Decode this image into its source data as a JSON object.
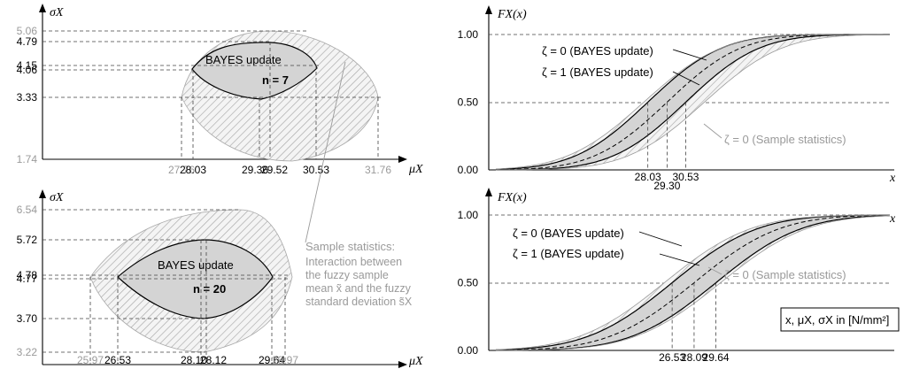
{
  "chart_data": [
    {
      "type": "diagram",
      "panel": "top-left",
      "y_axis_label": "σX",
      "x_axis_label": "μX",
      "y_ticks": [
        {
          "value": "5.06",
          "color": "gray"
        },
        {
          "value": "4.79",
          "color": "black"
        },
        {
          "value": "4.15",
          "color": "black"
        },
        {
          "value": "4.06",
          "color": "black"
        },
        {
          "value": "3.33",
          "color": "black"
        },
        {
          "value": "1.74",
          "color": "gray"
        }
      ],
      "x_ticks": [
        {
          "value": "27.76",
          "color": "gray"
        },
        {
          "value": "28.03",
          "color": "black"
        },
        {
          "value": "29.36",
          "color": "black"
        },
        {
          "value": "29.52",
          "color": "black"
        },
        {
          "value": "30.53",
          "color": "black"
        },
        {
          "value": "31.76",
          "color": "gray"
        }
      ],
      "region_label": "BAYES update",
      "n_label": "n = 7"
    },
    {
      "type": "diagram",
      "panel": "bottom-left",
      "y_axis_label": "σX",
      "x_axis_label": "μX",
      "y_ticks": [
        {
          "value": "6.54",
          "color": "gray"
        },
        {
          "value": "5.72",
          "color": "black"
        },
        {
          "value": "4.78",
          "color": "black"
        },
        {
          "value": "4.77",
          "color": "black"
        },
        {
          "value": "3.70",
          "color": "black"
        },
        {
          "value": "3.22",
          "color": "gray"
        }
      ],
      "x_ticks": [
        {
          "value": "25.97",
          "color": "gray"
        },
        {
          "value": "26.53",
          "color": "black"
        },
        {
          "value": "28.10",
          "color": "black"
        },
        {
          "value": "28.12",
          "color": "black"
        },
        {
          "value": "29.64",
          "color": "black"
        },
        {
          "value": "29.97",
          "color": "gray"
        }
      ],
      "region_label": "BAYES update",
      "n_label": "n = 20"
    },
    {
      "type": "line",
      "panel": "top-right",
      "y_axis_label": "FX(x)",
      "x_axis_label": "x",
      "y_ticks": [
        "0.00",
        "0.50",
        "1.00"
      ],
      "x_ticks": [
        "28.03",
        "29.30",
        "30.53"
      ],
      "ylim": [
        0,
        1
      ],
      "series": [
        {
          "name": "ζ = 0 (BAYES update)"
        },
        {
          "name": "ζ = 1 (BAYES update)"
        },
        {
          "name": "ζ = 0 (Sample statistics)"
        }
      ]
    },
    {
      "type": "line",
      "panel": "bottom-right",
      "y_axis_label": "FX(x)",
      "x_axis_label": "x",
      "y_ticks": [
        "0.00",
        "0.50",
        "1.00"
      ],
      "x_ticks": [
        "26.53",
        "28.09",
        "29.64"
      ],
      "ylim": [
        0,
        1
      ],
      "series": [
        {
          "name": "ζ = 0 (BAYES update)"
        },
        {
          "name": "ζ = 1 (BAYES update)"
        },
        {
          "name": "ζ = 0 (Sample statistics)"
        }
      ]
    }
  ],
  "annotation": {
    "title": "Sample statistics:",
    "lines": [
      "Interaction between",
      "the fuzzy sample",
      "mean x̃ and  the fuzzy",
      "standard deviation s̃X"
    ]
  },
  "units_box": "x, μX, σX in [N/mm²]",
  "colors": {
    "fill_gray": "#d4d4d4",
    "hatch": "#a8a8a8",
    "gray_text": "#9a9a9a"
  }
}
